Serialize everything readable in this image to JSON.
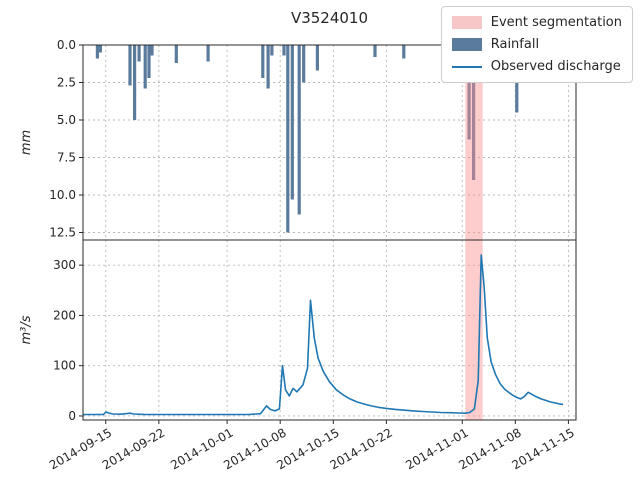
{
  "title": "V3524010",
  "legend": {
    "items": [
      {
        "label": "Event segmentation",
        "swatch": "patch",
        "color": "#f7c6c6",
        "icon": "event-segmentation-swatch"
      },
      {
        "label": "Rainfall",
        "swatch": "patch",
        "color": "#5b7b9c",
        "icon": "rainfall-swatch"
      },
      {
        "label": "Observed discharge",
        "swatch": "line",
        "color": "#1f77b4",
        "icon": "discharge-line-swatch"
      }
    ]
  },
  "x_axis": {
    "start_date": "2014-09-12",
    "span_days": 65,
    "ticks": [
      {
        "t": 3,
        "label": "2014-09-15"
      },
      {
        "t": 10,
        "label": "2014-09-22"
      },
      {
        "t": 19,
        "label": "2014-10-01"
      },
      {
        "t": 26,
        "label": "2014-10-08"
      },
      {
        "t": 33,
        "label": "2014-10-15"
      },
      {
        "t": 40,
        "label": "2014-10-22"
      },
      {
        "t": 50,
        "label": "2014-11-01"
      },
      {
        "t": 57,
        "label": "2014-11-08"
      },
      {
        "t": 64,
        "label": "2014-11-15"
      }
    ]
  },
  "event_band": {
    "t0": 50.4,
    "t1": 52.7,
    "color": "#fb8f8f",
    "opacity": 0.45,
    "label": "Event segmentation"
  },
  "chart_data": [
    {
      "type": "bar",
      "title": "V3524010",
      "series_name": "Rainfall",
      "ylabel": "mm",
      "color": "#5b7b9c",
      "inverted_y": true,
      "grid": "dashed",
      "ylim": [
        0,
        13
      ],
      "xlim_days": [
        0,
        65
      ],
      "x_units": "days after 2014-09-12",
      "y_ticks": [
        0,
        2.5,
        5,
        7.5,
        10,
        12.5
      ],
      "y_tick_labels": [
        "0.0",
        "2.5",
        "5.0",
        "7.5",
        "10.0",
        "12.5"
      ],
      "points": [
        [
          1.9,
          0.9
        ],
        [
          2.3,
          0.5
        ],
        [
          6.2,
          2.7
        ],
        [
          6.8,
          5.0
        ],
        [
          7.4,
          1.1
        ],
        [
          8.2,
          2.9
        ],
        [
          8.7,
          2.2
        ],
        [
          9.1,
          0.7
        ],
        [
          12.3,
          1.2
        ],
        [
          16.5,
          1.1
        ],
        [
          23.7,
          2.2
        ],
        [
          24.4,
          2.9
        ],
        [
          24.9,
          0.7
        ],
        [
          26.5,
          0.7
        ],
        [
          27.0,
          12.5
        ],
        [
          27.6,
          10.3
        ],
        [
          28.5,
          11.3
        ],
        [
          29.1,
          2.5
        ],
        [
          30.9,
          1.7
        ],
        [
          38.5,
          0.8
        ],
        [
          42.3,
          0.9
        ],
        [
          50.9,
          6.3
        ],
        [
          51.5,
          9.0
        ],
        [
          52.0,
          2.5
        ],
        [
          57.2,
          4.5
        ],
        [
          60.0,
          1.6
        ],
        [
          60.5,
          1.9
        ]
      ]
    },
    {
      "type": "line",
      "series_name": "Observed discharge",
      "ylabel": "m³/s",
      "color": "#1f77b4",
      "grid": "dashed",
      "ylim": [
        -8,
        350
      ],
      "xlim_days": [
        0,
        65
      ],
      "x_units": "days after 2014-09-12",
      "y_ticks": [
        0,
        100,
        200,
        300
      ],
      "y_tick_labels": [
        "0",
        "100",
        "200",
        "300"
      ],
      "points": [
        [
          0,
          3
        ],
        [
          1.5,
          3
        ],
        [
          2.7,
          3
        ],
        [
          3.0,
          8
        ],
        [
          3.4,
          6
        ],
        [
          3.9,
          4
        ],
        [
          5,
          3.5
        ],
        [
          6.2,
          5.5
        ],
        [
          6.7,
          4
        ],
        [
          8,
          3.2
        ],
        [
          10,
          3
        ],
        [
          13,
          3
        ],
        [
          16,
          3
        ],
        [
          19,
          3
        ],
        [
          22,
          3.2
        ],
        [
          23.4,
          4.5
        ],
        [
          24.2,
          20
        ],
        [
          24.7,
          13
        ],
        [
          25.3,
          10
        ],
        [
          25.9,
          14
        ],
        [
          26.3,
          100
        ],
        [
          26.7,
          52
        ],
        [
          27.2,
          40
        ],
        [
          27.7,
          55
        ],
        [
          28.2,
          48
        ],
        [
          29.0,
          62
        ],
        [
          29.6,
          95
        ],
        [
          30.0,
          230
        ],
        [
          30.5,
          155
        ],
        [
          31.0,
          115
        ],
        [
          31.7,
          88
        ],
        [
          32.5,
          68
        ],
        [
          33.4,
          52
        ],
        [
          34.3,
          42
        ],
        [
          35.2,
          34
        ],
        [
          36.1,
          28
        ],
        [
          37.0,
          24
        ],
        [
          38.0,
          20
        ],
        [
          39.0,
          17
        ],
        [
          40.0,
          15
        ],
        [
          41.2,
          13
        ],
        [
          42.4,
          11.5
        ],
        [
          43.6,
          10
        ],
        [
          44.8,
          9
        ],
        [
          46.0,
          8
        ],
        [
          47.2,
          7
        ],
        [
          48.4,
          6.5
        ],
        [
          49.6,
          6
        ],
        [
          50.4,
          5.5
        ],
        [
          51.0,
          7
        ],
        [
          51.6,
          14
        ],
        [
          52.1,
          70
        ],
        [
          52.5,
          320
        ],
        [
          52.9,
          255
        ],
        [
          53.3,
          155
        ],
        [
          53.8,
          108
        ],
        [
          54.4,
          82
        ],
        [
          55.0,
          64
        ],
        [
          55.6,
          53
        ],
        [
          56.2,
          46
        ],
        [
          56.7,
          41
        ],
        [
          57.2,
          37
        ],
        [
          57.7,
          34
        ],
        [
          58.2,
          39
        ],
        [
          58.7,
          47
        ],
        [
          59.2,
          43
        ],
        [
          59.8,
          38
        ],
        [
          60.4,
          34
        ],
        [
          61.0,
          31
        ],
        [
          61.6,
          28
        ],
        [
          62.2,
          26
        ],
        [
          62.8,
          24
        ],
        [
          63.3,
          23
        ]
      ]
    }
  ]
}
